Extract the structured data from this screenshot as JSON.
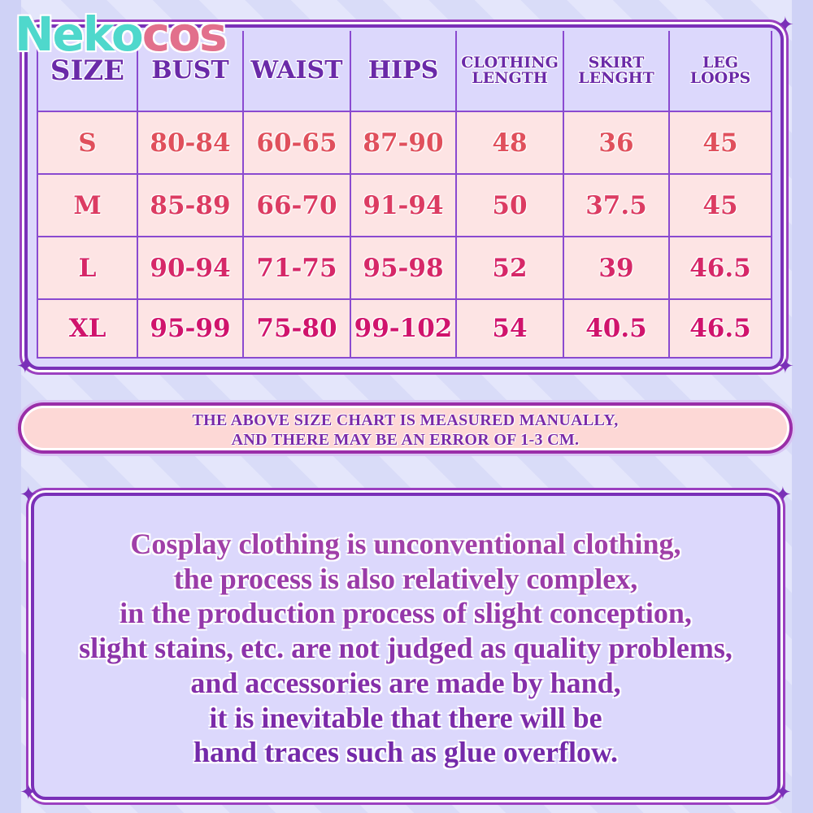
{
  "brand": {
    "logo_part1": "Neko",
    "logo_part2": "cos",
    "teal": "#4fd8cc",
    "pink": "#e2708c"
  },
  "size_table": {
    "headers": [
      "SIZE",
      "BUST",
      "WAIST",
      "HIPS",
      "CLOTHING LENGTH",
      "SKIRT LENGHT",
      "LEG LOOPS"
    ],
    "header_lines": [
      [
        "SIZE"
      ],
      [
        "BUST"
      ],
      [
        "WAIST"
      ],
      [
        "HIPS"
      ],
      [
        "CLOTHING",
        "LENGTH"
      ],
      [
        "SKIRT",
        "LENGHT"
      ],
      [
        "LEG",
        "LOOPS"
      ]
    ],
    "rows": [
      {
        "color": "#e0505c",
        "cells": [
          "S",
          "80-84",
          "60-65",
          "87-90",
          "48",
          "36",
          "45"
        ]
      },
      {
        "color": "#dc3c62",
        "cells": [
          "M",
          "85-89",
          "66-70",
          "91-94",
          "50",
          "37.5",
          "45"
        ]
      },
      {
        "color": "#d62868",
        "cells": [
          "L",
          "90-94",
          "71-75",
          "95-98",
          "52",
          "39",
          "46.5"
        ]
      },
      {
        "color": "#d0146c",
        "cells": [
          "XL",
          "95-99",
          "75-80",
          "99-102",
          "54",
          "40.5",
          "46.5"
        ]
      }
    ]
  },
  "notice": {
    "line1": "THE ABOVE SIZE CHART IS MEASURED MANUALLY,",
    "line2": "AND THERE MAY BE AN ERROR OF 1-3 CM."
  },
  "disclaimer": {
    "lines": [
      "Cosplay clothing is unconventional clothing,",
      "the process is also relatively complex,",
      "in the production process of slight conception,",
      "slight stains, etc. are not judged as quality problems,",
      "and accessories are made by hand,",
      "it is inevitable that there will be",
      "hand traces such as glue overflow."
    ]
  },
  "colors": {
    "frame": "#7a30b8",
    "header_bg": "#dcd8fc",
    "cell_bg": "#fde4e4",
    "heading_text": "#6a2aa8"
  }
}
